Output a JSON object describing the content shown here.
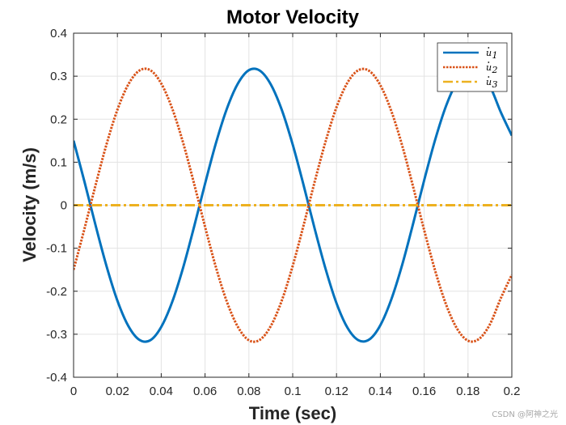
{
  "chart_data": {
    "type": "line",
    "title": "Motor Velocity",
    "xlabel": "Time (sec)",
    "ylabel": "Velocity (m/s)",
    "xlim": [
      0,
      0.2
    ],
    "ylim": [
      -0.4,
      0.4
    ],
    "xticks": [
      0,
      0.02,
      0.04,
      0.06,
      0.08,
      0.1,
      0.12,
      0.14,
      0.16,
      0.18,
      0.2
    ],
    "yticks": [
      -0.4,
      -0.3,
      -0.2,
      -0.1,
      0,
      0.1,
      0.2,
      0.3,
      0.4
    ],
    "xtick_labels": [
      "0",
      "0.02",
      "0.04",
      "0.06",
      "0.08",
      "0.1",
      "0.12",
      "0.14",
      "0.16",
      "0.18",
      "0.2"
    ],
    "ytick_labels": [
      "-0.4",
      "-0.3",
      "-0.2",
      "-0.1",
      "0",
      "0.1",
      "0.2",
      "0.3",
      "0.4"
    ],
    "grid": true,
    "legend_position": "top-right",
    "series": [
      {
        "name": "u̇₁",
        "legend_base": "u",
        "legend_sub": "1",
        "color": "#0072BD",
        "style": "solid",
        "x": [
          0,
          0.005,
          0.01,
          0.015,
          0.02,
          0.025,
          0.03,
          0.035,
          0.04,
          0.045,
          0.05,
          0.055,
          0.06,
          0.065,
          0.07,
          0.075,
          0.08,
          0.085,
          0.09,
          0.095,
          0.1,
          0.105,
          0.11,
          0.115,
          0.12,
          0.125,
          0.13,
          0.135,
          0.14,
          0.145,
          0.15,
          0.155,
          0.16,
          0.165,
          0.17,
          0.175,
          0.18,
          0.185,
          0.19,
          0.195,
          0.2
        ],
        "values": [
          0.15,
          0.054,
          -0.046,
          -0.141,
          -0.222,
          -0.281,
          -0.313,
          -0.314,
          -0.283,
          -0.225,
          -0.145,
          -0.05,
          0.05,
          0.145,
          0.225,
          0.283,
          0.314,
          0.313,
          0.281,
          0.222,
          0.141,
          0.046,
          -0.054,
          -0.148,
          -0.228,
          -0.285,
          -0.314,
          -0.312,
          -0.279,
          -0.219,
          -0.138,
          -0.042,
          0.058,
          0.152,
          0.231,
          0.287,
          0.315,
          0.311,
          0.277,
          0.216,
          0.162
        ]
      },
      {
        "name": "u̇₂",
        "legend_base": "u",
        "legend_sub": "2",
        "color": "#D95319",
        "style": "dotted",
        "x": [
          0,
          0.005,
          0.01,
          0.015,
          0.02,
          0.025,
          0.03,
          0.035,
          0.04,
          0.045,
          0.05,
          0.055,
          0.06,
          0.065,
          0.07,
          0.075,
          0.08,
          0.085,
          0.09,
          0.095,
          0.1,
          0.105,
          0.11,
          0.115,
          0.12,
          0.125,
          0.13,
          0.135,
          0.14,
          0.145,
          0.15,
          0.155,
          0.16,
          0.165,
          0.17,
          0.175,
          0.18,
          0.185,
          0.19,
          0.195,
          0.2
        ],
        "values": [
          -0.15,
          -0.054,
          0.046,
          0.141,
          0.222,
          0.281,
          0.313,
          0.314,
          0.283,
          0.225,
          0.145,
          0.05,
          -0.05,
          -0.145,
          -0.225,
          -0.283,
          -0.314,
          -0.313,
          -0.281,
          -0.222,
          -0.141,
          -0.046,
          0.054,
          0.148,
          0.228,
          0.285,
          0.314,
          0.312,
          0.279,
          0.219,
          0.138,
          0.042,
          -0.058,
          -0.152,
          -0.231,
          -0.287,
          -0.315,
          -0.311,
          -0.277,
          -0.216,
          -0.162
        ]
      },
      {
        "name": "u̇₃",
        "legend_base": "u",
        "legend_sub": "3",
        "color": "#EDB120",
        "style": "dashdot",
        "x": [
          0,
          0.2
        ],
        "values": [
          0,
          0
        ]
      }
    ]
  },
  "watermark": "CSDN @阿神之光"
}
